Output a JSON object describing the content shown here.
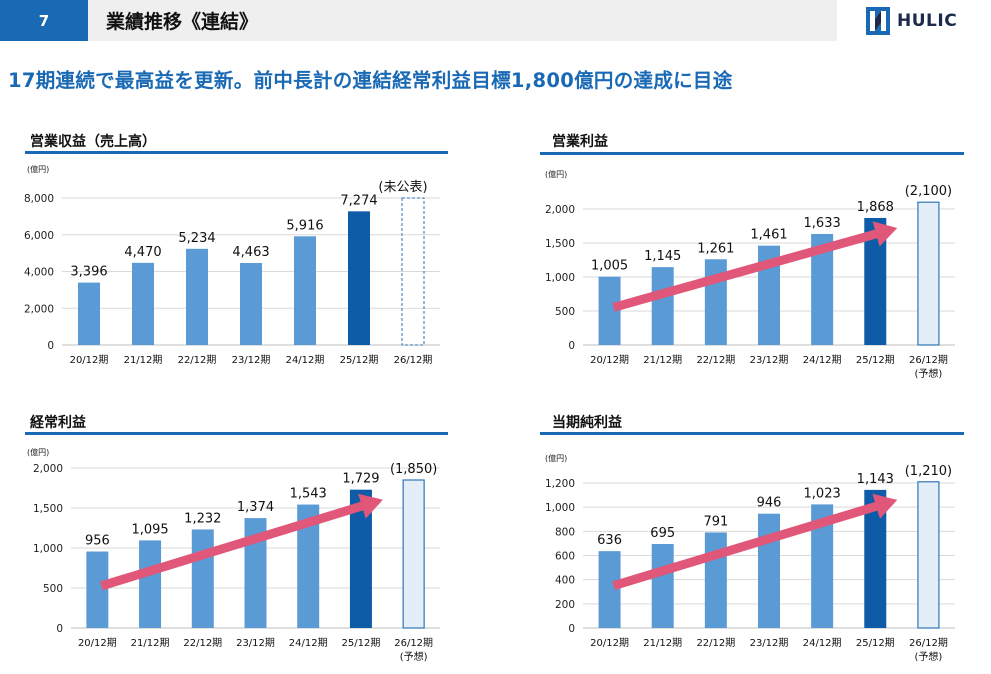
{
  "header": {
    "page_number": "7",
    "title": "業績推移《連結》",
    "logo_text": "HULIC"
  },
  "headline": "17期連続で最高益を更新。前中長計の連結経常利益目標1,800億円の達成に目途",
  "colors": {
    "accent": "#1a69b4",
    "bar": "#5b9bd5",
    "bar_current": "#0e5ca8",
    "forecast_fill": "#e3eef9",
    "forecast_stroke": "#2e75b6",
    "arrow": "#e0577a",
    "grid": "#d9d9d9"
  },
  "chart_data": [
    {
      "type": "bar",
      "title": "営業収益（売上高）",
      "unit": "(億円)",
      "categories": [
        "20/12期",
        "21/12期",
        "22/12期",
        "23/12期",
        "24/12期",
        "25/12期",
        "26/12期"
      ],
      "values": [
        3396,
        4470,
        5234,
        4463,
        5916,
        7274,
        null
      ],
      "value_labels": [
        "3,396",
        "4,470",
        "5,234",
        "4,463",
        "5,916",
        "7,274",
        "(未公表)"
      ],
      "yticks": [
        "0",
        "2,000",
        "4,000",
        "6,000",
        "8,000"
      ],
      "ylim": [
        0,
        8000
      ],
      "highlight_index": 5,
      "forecast_index": 6,
      "forecast_style": "dashed-empty",
      "trend_arrow": false
    },
    {
      "type": "bar",
      "title": "営業利益",
      "unit": "(億円)",
      "categories": [
        "20/12期",
        "21/12期",
        "22/12期",
        "23/12期",
        "24/12期",
        "25/12期",
        "26/12期"
      ],
      "category_sublabels": [
        "",
        "",
        "",
        "",
        "",
        "",
        "(予想)"
      ],
      "values": [
        1005,
        1145,
        1261,
        1461,
        1633,
        1868,
        2100
      ],
      "value_labels": [
        "1,005",
        "1,145",
        "1,261",
        "1,461",
        "1,633",
        "1,868",
        "(2,100)"
      ],
      "yticks": [
        "0",
        "500",
        "1,000",
        "1,500",
        "2,000"
      ],
      "ylim": [
        0,
        2200
      ],
      "highlight_index": 5,
      "forecast_index": 6,
      "forecast_style": "outlined",
      "trend_arrow": true
    },
    {
      "type": "bar",
      "title": "経常利益",
      "unit": "(億円)",
      "categories": [
        "20/12期",
        "21/12期",
        "22/12期",
        "23/12期",
        "24/12期",
        "25/12期",
        "26/12期"
      ],
      "category_sublabels": [
        "",
        "",
        "",
        "",
        "",
        "",
        "(予想)"
      ],
      "values": [
        956,
        1095,
        1232,
        1374,
        1543,
        1729,
        1850
      ],
      "value_labels": [
        "956",
        "1,095",
        "1,232",
        "1,374",
        "1,543",
        "1,729",
        "(1,850)"
      ],
      "yticks": [
        "0",
        "500",
        "1,000",
        "1,500",
        "2,000"
      ],
      "ylim": [
        0,
        2000
      ],
      "highlight_index": 5,
      "forecast_index": 6,
      "forecast_style": "outlined",
      "trend_arrow": true
    },
    {
      "type": "bar",
      "title": "当期純利益",
      "unit": "(億円)",
      "categories": [
        "20/12期",
        "21/12期",
        "22/12期",
        "23/12期",
        "24/12期",
        "25/12期",
        "26/12期"
      ],
      "category_sublabels": [
        "",
        "",
        "",
        "",
        "",
        "",
        "(予想)"
      ],
      "values": [
        636,
        695,
        791,
        946,
        1023,
        1143,
        1210
      ],
      "value_labels": [
        "636",
        "695",
        "791",
        "946",
        "1,023",
        "1,143",
        "(1,210)"
      ],
      "yticks": [
        "0",
        "200",
        "400",
        "600",
        "800",
        "1,000",
        "1,200"
      ],
      "ylim": [
        0,
        1200
      ],
      "highlight_index": 5,
      "forecast_index": 6,
      "forecast_style": "outlined",
      "trend_arrow": true
    }
  ]
}
